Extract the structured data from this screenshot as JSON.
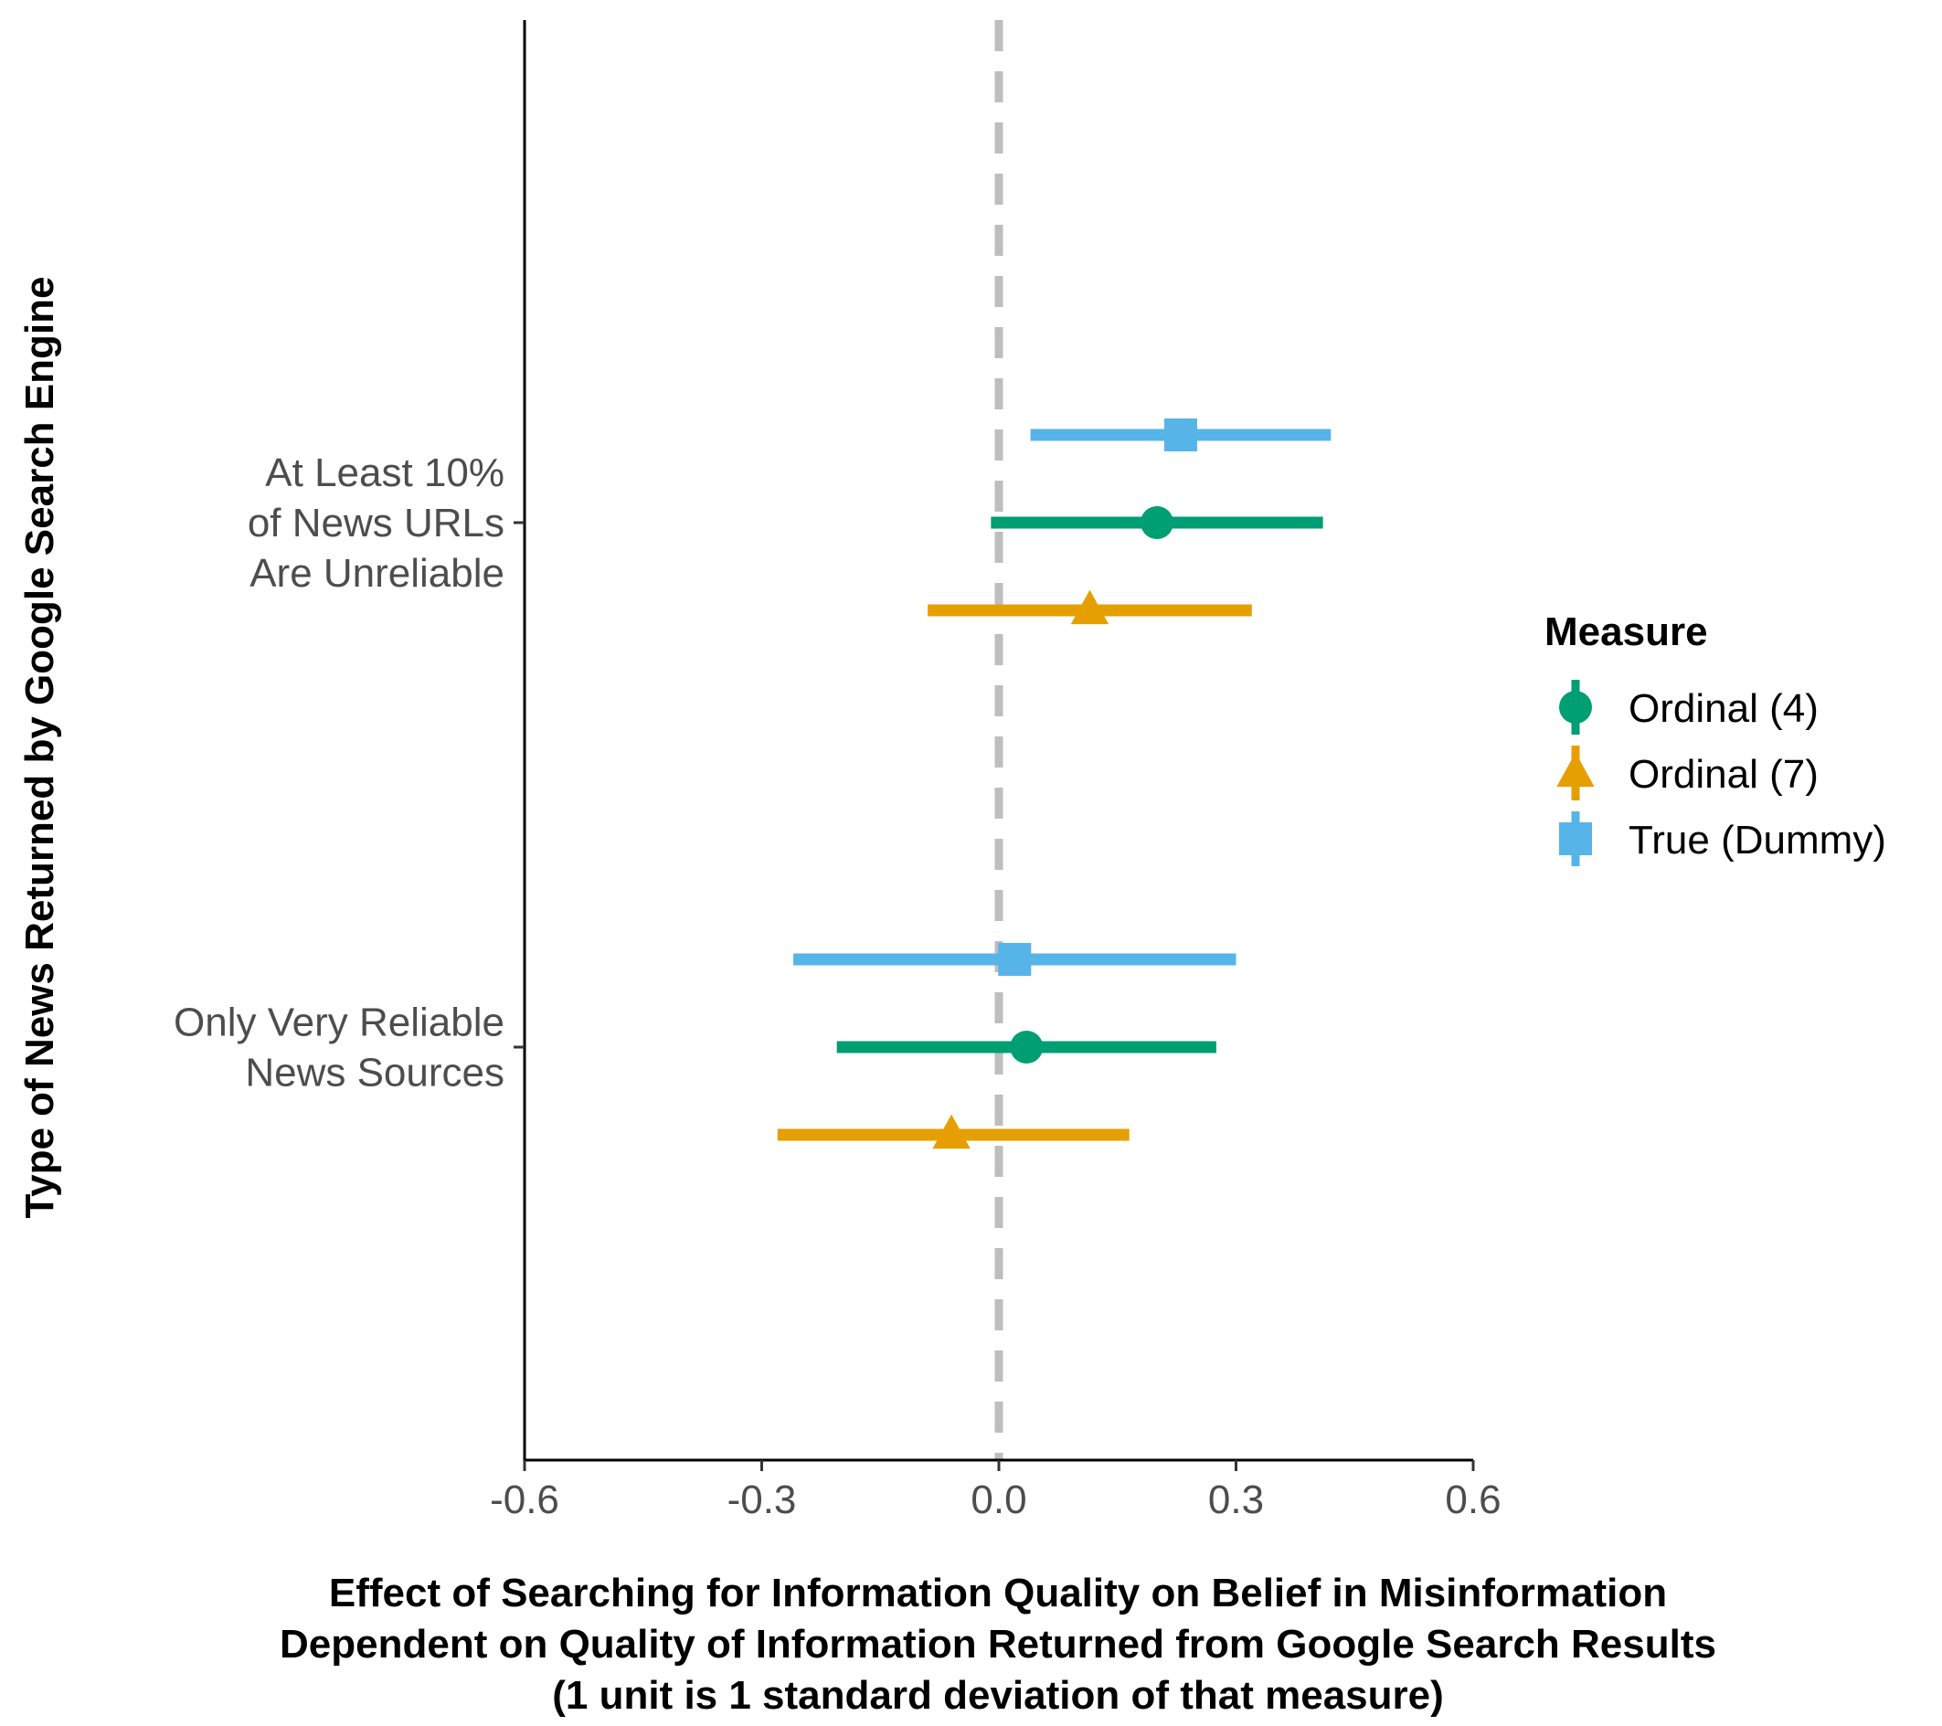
{
  "chart_data": {
    "type": "scatter",
    "orientation": "horizontal",
    "description_style": "point-range (coefficient with confidence interval)",
    "categories": [
      "Only Very Reliable\nNews Sources",
      "At Least 10%\nof News URLs\nAre Unreliable"
    ],
    "category_lines": [
      [
        "Only Very Reliable",
        "News Sources"
      ],
      [
        "At Least 10%",
        "of News URLs",
        "Are Unreliable"
      ]
    ],
    "series": [
      {
        "name": "Ordinal (4)",
        "color": "#009E73",
        "shape": "circle",
        "points": [
          {
            "category": "Only Very Reliable\nNews Sources",
            "estimate": 0.035,
            "low": -0.205,
            "high": 0.275
          },
          {
            "category": "At Least 10%\nof News URLs\nAre Unreliable",
            "estimate": 0.2,
            "low": -0.01,
            "high": 0.41
          }
        ]
      },
      {
        "name": "Ordinal (7)",
        "color": "#E69F00",
        "shape": "triangle",
        "points": [
          {
            "category": "Only Very Reliable\nNews Sources",
            "estimate": -0.06,
            "low": -0.28,
            "high": 0.165
          },
          {
            "category": "At Least 10%\nof News URLs\nAre Unreliable",
            "estimate": 0.115,
            "low": -0.09,
            "high": 0.32
          }
        ]
      },
      {
        "name": "True (Dummy)",
        "color": "#56B4E9",
        "shape": "square",
        "points": [
          {
            "category": "Only Very Reliable\nNews Sources",
            "estimate": 0.02,
            "low": -0.26,
            "high": 0.3
          },
          {
            "category": "At Least 10%\nof News URLs\nAre Unreliable",
            "estimate": 0.23,
            "low": 0.04,
            "high": 0.42
          }
        ]
      }
    ],
    "xlim": [
      -0.6,
      0.6
    ],
    "xticks": [
      -0.6,
      -0.3,
      0.0,
      0.3,
      0.6
    ],
    "xtick_labels": [
      "-0.6",
      "-0.3",
      "0.0",
      "0.3",
      "0.6"
    ],
    "reference_line": {
      "x": 0.0,
      "style": "dashed",
      "color": "#BEBEBE"
    },
    "xlabel_lines": [
      "Effect of Searching for Information Quality on Belief in Misinformation",
      "Dependent on Quality of Information Returned from Google Search Results",
      "(1 unit is 1 standard deviation of that measure)"
    ],
    "ylabel": "Type of News Returned by Google Search Engine",
    "legend": {
      "title": "Measure",
      "position": "right",
      "entries": [
        "Ordinal (4)",
        "Ordinal (7)",
        "True (Dummy)"
      ]
    },
    "grid": false
  }
}
